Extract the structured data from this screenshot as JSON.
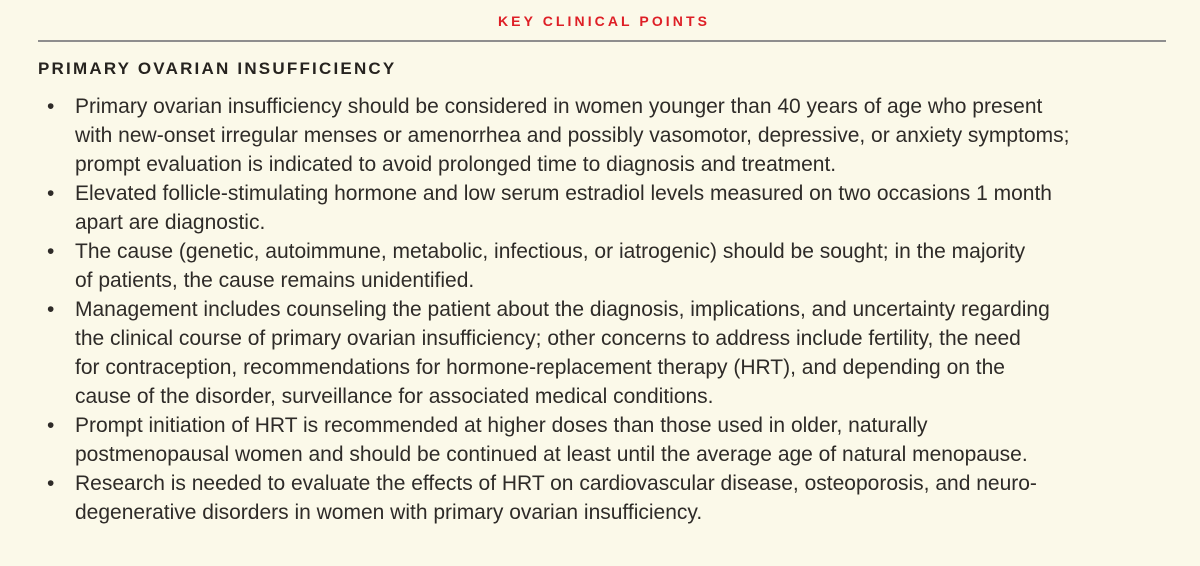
{
  "panel": {
    "header": "KEY CLINICAL POINTS",
    "section_title": "PRIMARY OVARIAN INSUFFICIENCY",
    "bullet_glyph": "•",
    "bullets": [
      "Primary ovarian insufficiency should be considered in women younger than 40 years of age who present\nwith new-onset irregular menses or amenorrhea and possibly vasomotor, depressive, or anxiety symptoms;\nprompt evaluation is indicated to avoid prolonged time to diagnosis and treatment.",
      "Elevated follicle-stimulating hormone and low serum estradiol levels measured on two occasions 1 month\napart are diagnostic.",
      "The cause (genetic, autoimmune, metabolic, infectious, or iatrogenic) should be sought; in the majority\nof patients, the cause remains unidentified.",
      "Management includes counseling the patient about the diagnosis, implications, and uncertainty regarding\nthe clinical course of primary ovarian insufficiency; other concerns to address include fertility, the need\nfor contraception, recommendations for hormone-replacement therapy (HRT), and depending on the\ncause of the disorder, surveillance for associated medical conditions.",
      "Prompt initiation of HRT is recommended at higher doses than those used in older, naturally\npostmenopausal women and should be continued at least until the average age of natural menopause.",
      "Research is needed to evaluate the effects of HRT on cardiovascular disease, osteoporosis, and neuro-\ndegenerative disorders in women with primary ovarian insufficiency."
    ],
    "colors": {
      "background": "#FBF9E9",
      "header_red": "#DE1F26",
      "body_text": "#2E2B28",
      "rule_gray": "#8E8E8E"
    }
  }
}
